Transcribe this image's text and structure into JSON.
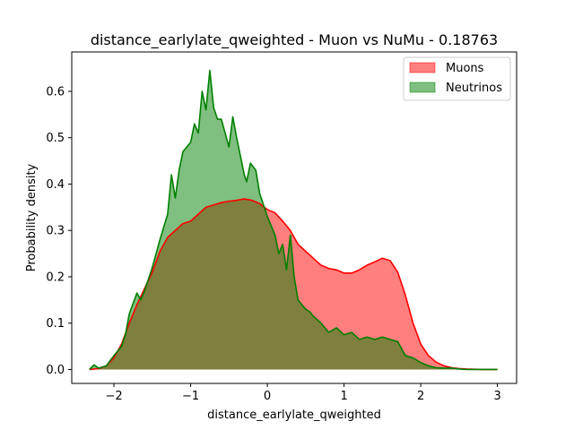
{
  "chart_data": {
    "type": "area",
    "title": "distance_earlylate_qweighted - Muon vs NuMu - 0.18763",
    "xlabel": "distance_earlylate_qweighted",
    "ylabel": "Probability density",
    "xlim": [
      -2.55,
      3.25
    ],
    "ylim": [
      -0.03,
      0.685
    ],
    "xticks": [
      -2,
      -1,
      0,
      1,
      2,
      3
    ],
    "xtick_labels": [
      "−2",
      "−1",
      "0",
      "1",
      "2",
      "3"
    ],
    "yticks": [
      0.0,
      0.1,
      0.2,
      0.3,
      0.4,
      0.5,
      0.6
    ],
    "ytick_labels": [
      "0.0",
      "0.1",
      "0.2",
      "0.3",
      "0.4",
      "0.5",
      "0.6"
    ],
    "grid": false,
    "legend_position": "top-right",
    "series": [
      {
        "name": "Muons",
        "line_color": "#ff0000",
        "fill_color": "#ff0000",
        "fill_opacity": 0.5,
        "points": [
          [
            -2.32,
            0.0
          ],
          [
            -2.2,
            0.002
          ],
          [
            -2.1,
            0.008
          ],
          [
            -2.0,
            0.025
          ],
          [
            -1.9,
            0.055
          ],
          [
            -1.8,
            0.1
          ],
          [
            -1.7,
            0.14
          ],
          [
            -1.6,
            0.175
          ],
          [
            -1.5,
            0.21
          ],
          [
            -1.4,
            0.255
          ],
          [
            -1.3,
            0.285
          ],
          [
            -1.2,
            0.3
          ],
          [
            -1.1,
            0.315
          ],
          [
            -1.0,
            0.32
          ],
          [
            -0.9,
            0.335
          ],
          [
            -0.8,
            0.35
          ],
          [
            -0.7,
            0.355
          ],
          [
            -0.6,
            0.36
          ],
          [
            -0.5,
            0.363
          ],
          [
            -0.4,
            0.365
          ],
          [
            -0.3,
            0.368
          ],
          [
            -0.2,
            0.365
          ],
          [
            -0.1,
            0.358
          ],
          [
            0.0,
            0.345
          ],
          [
            0.1,
            0.338
          ],
          [
            0.2,
            0.32
          ],
          [
            0.3,
            0.3
          ],
          [
            0.4,
            0.27
          ],
          [
            0.5,
            0.255
          ],
          [
            0.6,
            0.24
          ],
          [
            0.7,
            0.225
          ],
          [
            0.8,
            0.218
          ],
          [
            0.9,
            0.215
          ],
          [
            1.0,
            0.208
          ],
          [
            1.1,
            0.208
          ],
          [
            1.2,
            0.215
          ],
          [
            1.3,
            0.225
          ],
          [
            1.4,
            0.232
          ],
          [
            1.5,
            0.24
          ],
          [
            1.6,
            0.235
          ],
          [
            1.7,
            0.21
          ],
          [
            1.8,
            0.16
          ],
          [
            1.9,
            0.1
          ],
          [
            2.0,
            0.055
          ],
          [
            2.1,
            0.03
          ],
          [
            2.2,
            0.016
          ],
          [
            2.3,
            0.008
          ],
          [
            2.4,
            0.004
          ],
          [
            2.5,
            0.002
          ],
          [
            2.6,
            0.001
          ],
          [
            2.8,
            0.0
          ],
          [
            3.0,
            0.0
          ]
        ]
      },
      {
        "name": "Neutrinos",
        "line_color": "#008000",
        "fill_color": "#008000",
        "fill_opacity": 0.5,
        "points": [
          [
            -2.32,
            0.0
          ],
          [
            -2.26,
            0.01
          ],
          [
            -2.2,
            0.003
          ],
          [
            -2.1,
            0.008
          ],
          [
            -2.0,
            0.03
          ],
          [
            -1.9,
            0.05
          ],
          [
            -1.85,
            0.075
          ],
          [
            -1.8,
            0.12
          ],
          [
            -1.7,
            0.165
          ],
          [
            -1.65,
            0.15
          ],
          [
            -1.6,
            0.17
          ],
          [
            -1.5,
            0.22
          ],
          [
            -1.4,
            0.28
          ],
          [
            -1.3,
            0.335
          ],
          [
            -1.25,
            0.42
          ],
          [
            -1.2,
            0.37
          ],
          [
            -1.15,
            0.43
          ],
          [
            -1.1,
            0.47
          ],
          [
            -1.0,
            0.49
          ],
          [
            -0.95,
            0.53
          ],
          [
            -0.9,
            0.51
          ],
          [
            -0.85,
            0.6
          ],
          [
            -0.8,
            0.56
          ],
          [
            -0.75,
            0.645
          ],
          [
            -0.7,
            0.565
          ],
          [
            -0.65,
            0.54
          ],
          [
            -0.6,
            0.54
          ],
          [
            -0.55,
            0.51
          ],
          [
            -0.5,
            0.48
          ],
          [
            -0.45,
            0.545
          ],
          [
            -0.4,
            0.5
          ],
          [
            -0.35,
            0.46
          ],
          [
            -0.3,
            0.42
          ],
          [
            -0.27,
            0.405
          ],
          [
            -0.22,
            0.445
          ],
          [
            -0.15,
            0.43
          ],
          [
            -0.1,
            0.38
          ],
          [
            -0.05,
            0.355
          ],
          [
            0.0,
            0.33
          ],
          [
            0.1,
            0.29
          ],
          [
            0.15,
            0.25
          ],
          [
            0.2,
            0.27
          ],
          [
            0.25,
            0.215
          ],
          [
            0.3,
            0.29
          ],
          [
            0.35,
            0.2
          ],
          [
            0.4,
            0.15
          ],
          [
            0.45,
            0.14
          ],
          [
            0.5,
            0.13
          ],
          [
            0.55,
            0.125
          ],
          [
            0.6,
            0.115
          ],
          [
            0.7,
            0.1
          ],
          [
            0.8,
            0.08
          ],
          [
            0.9,
            0.09
          ],
          [
            1.0,
            0.075
          ],
          [
            1.1,
            0.08
          ],
          [
            1.2,
            0.065
          ],
          [
            1.3,
            0.07
          ],
          [
            1.4,
            0.065
          ],
          [
            1.5,
            0.07
          ],
          [
            1.6,
            0.065
          ],
          [
            1.7,
            0.06
          ],
          [
            1.8,
            0.03
          ],
          [
            1.9,
            0.025
          ],
          [
            2.0,
            0.015
          ],
          [
            2.1,
            0.008
          ],
          [
            2.2,
            0.004
          ],
          [
            2.3,
            0.003
          ],
          [
            2.4,
            0.003
          ],
          [
            2.5,
            0.001
          ],
          [
            2.6,
            0.0
          ],
          [
            2.8,
            0.0
          ],
          [
            3.0,
            0.0
          ]
        ]
      }
    ]
  }
}
